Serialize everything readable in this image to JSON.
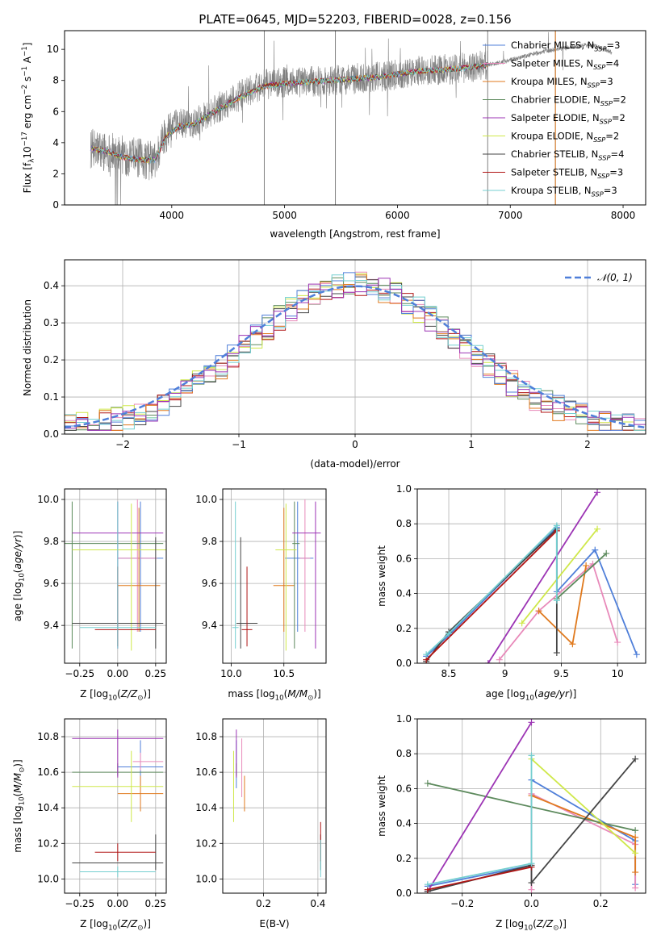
{
  "colors": {
    "Chabrier MILES": "#4f7fd9",
    "Salpeter MILES": "#e88aba",
    "Kroupa MILES": "#e07a1e",
    "Chabrier ELODIE": "#5d8a5d",
    "Salpeter ELODIE": "#9c34b4",
    "Kroupa ELODIE": "#cfe84a",
    "Chabrier STELIB": "#454545",
    "Salpeter STELIB": "#b01515",
    "Kroupa STELIB": "#74cfd0",
    "data": "#808080",
    "gauss": "#4f7fd9"
  },
  "chart_data": [
    {
      "type": "line",
      "title": "PLATE=0645, MJD=52203, FIBERID=0028, z=0.156",
      "xlabel": "wavelength [Angstrom, rest frame]",
      "ylabel": "Flux [f_λ10^-17 erg cm^-2 s^-1 A^-1]",
      "xlim": [
        3050,
        8200
      ],
      "ylim": [
        0,
        11.2
      ],
      "xticks": [
        4000,
        5000,
        6000,
        7000,
        8000
      ],
      "yticks": [
        0,
        2,
        4,
        6,
        8,
        10
      ],
      "legend_position": "right",
      "legend": [
        {
          "model": "Chabrier MILES",
          "n": "3"
        },
        {
          "model": "Salpeter MILES",
          "n": "4"
        },
        {
          "model": "Kroupa MILES",
          "n": "3"
        },
        {
          "model": "Chabrier ELODIE",
          "n": "2"
        },
        {
          "model": "Salpeter ELODIE",
          "n": "2"
        },
        {
          "model": "Kroupa ELODIE",
          "n": "2"
        },
        {
          "model": "Chabrier STELIB",
          "n": "4"
        },
        {
          "model": "Salpeter STELIB",
          "n": "3"
        },
        {
          "model": "Kroupa STELIB",
          "n": "3"
        }
      ],
      "spectrum_anchor": {
        "x": [
          3300,
          3450,
          3550,
          3700,
          3850,
          3950,
          4050,
          4200,
          4400,
          4600,
          4800,
          5000,
          5200,
          5400,
          5600,
          5800,
          6000,
          6200,
          6400,
          6600,
          6800,
          7000,
          7200,
          7400,
          7500,
          7700,
          7800,
          7900
        ],
        "y": [
          3.6,
          3.4,
          3.2,
          3.0,
          2.8,
          4.7,
          5.2,
          5.3,
          6.2,
          7.0,
          7.7,
          7.9,
          7.9,
          8.0,
          8.1,
          8.2,
          8.4,
          8.6,
          8.7,
          8.8,
          9.0,
          9.3,
          9.7,
          10.0,
          10.1,
          10.3,
          10.1,
          9.8
        ]
      },
      "model_anchor": {
        "x": [
          3300,
          3450,
          3550,
          3700,
          3850,
          3950,
          4050,
          4200,
          4400,
          4600,
          4800,
          5000,
          5200,
          5400,
          5600,
          5800,
          6000,
          6200,
          6400,
          6600,
          6800
        ],
        "y": [
          3.6,
          3.4,
          3.1,
          2.9,
          2.9,
          4.4,
          5.0,
          5.2,
          6.1,
          6.9,
          7.6,
          7.8,
          7.9,
          8.0,
          8.1,
          8.2,
          8.4,
          8.6,
          8.7,
          8.8,
          9.0
        ]
      }
    },
    {
      "type": "histogram",
      "xlabel": "(data-model)/error",
      "ylabel": "Normed distribution",
      "xlim": [
        -2.5,
        2.5
      ],
      "ylim": [
        0,
        0.47
      ],
      "xticks": [
        -2,
        -1,
        0,
        1,
        2
      ],
      "xticklabels": [
        "−2",
        "−1",
        "0",
        "1",
        "2"
      ],
      "yticks": [
        0.0,
        0.1,
        0.2,
        0.3,
        0.4
      ],
      "grid": true,
      "bin_width": 0.1,
      "legend_label": "𝒩(0, 1)",
      "legend_position": "top-right"
    },
    {
      "type": "errorbar",
      "xlabel": "Z [log10(Z/Z⊙)]",
      "ylabel": "age  [log10(age/yr)]",
      "xlim": [
        -0.35,
        0.32
      ],
      "ylim": [
        9.22,
        10.05
      ],
      "xticks": [
        -0.25,
        0.0,
        0.25
      ],
      "xticklabels": [
        "−0.25",
        "0.00",
        "0.25"
      ],
      "yticks": [
        9.4,
        9.6,
        9.8,
        10.0
      ],
      "grid": true,
      "points": [
        {
          "model": "Chabrier MILES",
          "x": 0.15,
          "xe": [
            0.15,
            0.15
          ],
          "y": 9.72,
          "ye": [
            0.35,
            0.27
          ]
        },
        {
          "model": "Salpeter MILES",
          "x": 0.13,
          "xe": [
            0.13,
            0.13
          ],
          "y": 9.72,
          "ye": [
            0.35,
            0.28
          ]
        },
        {
          "model": "Kroupa MILES",
          "x": 0.14,
          "xe": [
            0.14,
            0.14
          ],
          "y": 9.59,
          "ye": [
            0.22,
            0.37
          ]
        },
        {
          "model": "Chabrier ELODIE",
          "x": -0.3,
          "xe": [
            0.6,
            0.6
          ],
          "y": 9.79,
          "ye": [
            0.5,
            0.2
          ]
        },
        {
          "model": "Salpeter ELODIE",
          "x": 0.0,
          "xe": [
            0.3,
            0.3
          ],
          "y": 9.84,
          "ye": [
            0.55,
            0.15
          ]
        },
        {
          "model": "Kroupa ELODIE",
          "x": 0.09,
          "xe": [
            0.39,
            0.3
          ],
          "y": 9.76,
          "ye": [
            0.48,
            0.22
          ]
        },
        {
          "model": "Chabrier STELIB",
          "x": 0.25,
          "xe": [
            0.55,
            0.05
          ],
          "y": 9.41,
          "ye": [
            0.12,
            0.41
          ]
        },
        {
          "model": "Salpeter STELIB",
          "x": 0.0,
          "xe": [
            0.15,
            0.25
          ],
          "y": 9.38,
          "ye": [
            0.08,
            0.3
          ]
        },
        {
          "model": "Kroupa STELIB",
          "x": 0.0,
          "xe": [
            0.25,
            0.25
          ],
          "y": 9.39,
          "ye": [
            0.1,
            0.6
          ]
        }
      ]
    },
    {
      "type": "errorbar",
      "xlabel": "mass [log10(M/M⊙)]",
      "xlim": [
        9.92,
        10.9
      ],
      "ylim": [
        9.22,
        10.05
      ],
      "xticks": [
        10.0,
        10.5
      ],
      "xticklabels": [
        "10.0",
        "10.5"
      ],
      "yticks": [
        9.4,
        9.6,
        9.8,
        10.0
      ],
      "grid": true,
      "points": [
        {
          "model": "Chabrier MILES",
          "x": 10.63,
          "xe": [
            0.12,
            0.15
          ],
          "y": 9.72,
          "ye": [
            0.35,
            0.27
          ]
        },
        {
          "model": "Salpeter MILES",
          "x": 10.7,
          "xe": [
            0.05,
            0.05
          ],
          "y": 9.72,
          "ye": [
            0.35,
            0.28
          ]
        },
        {
          "model": "Kroupa MILES",
          "x": 10.5,
          "xe": [
            0.1,
            0.1
          ],
          "y": 9.59,
          "ye": [
            0.22,
            0.37
          ]
        },
        {
          "model": "Chabrier ELODIE",
          "x": 10.6,
          "xe": [
            0.02,
            0.05
          ],
          "y": 9.79,
          "ye": [
            0.5,
            0.2
          ]
        },
        {
          "model": "Salpeter ELODIE",
          "x": 10.8,
          "xe": [
            0.22,
            0.05
          ],
          "y": 9.84,
          "ye": [
            0.55,
            0.15
          ]
        },
        {
          "model": "Kroupa ELODIE",
          "x": 10.52,
          "xe": [
            0.1,
            0.1
          ],
          "y": 9.76,
          "ye": [
            0.48,
            0.22
          ]
        },
        {
          "model": "Chabrier STELIB",
          "x": 10.09,
          "xe": [
            0.04,
            0.16
          ],
          "y": 9.41,
          "ye": [
            0.12,
            0.41
          ]
        },
        {
          "model": "Salpeter STELIB",
          "x": 10.15,
          "xe": [
            0.05,
            0.05
          ],
          "y": 9.38,
          "ye": [
            0.08,
            0.3
          ]
        },
        {
          "model": "Kroupa STELIB",
          "x": 10.04,
          "xe": [
            0.03,
            0.03
          ],
          "y": 9.39,
          "ye": [
            0.1,
            0.6
          ]
        }
      ]
    },
    {
      "type": "line",
      "xlabel": "age  [log10(age/yr)]",
      "ylabel": "mass weight",
      "xlim": [
        8.22,
        10.25
      ],
      "ylim": [
        0,
        1
      ],
      "xticks": [
        8.5,
        9.0,
        9.5,
        10.0
      ],
      "yticks": [
        0.0,
        0.2,
        0.4,
        0.6,
        0.8,
        1.0
      ],
      "grid": true,
      "series": [
        {
          "model": "Chabrier MILES",
          "x": [
            8.3,
            8.5,
            9.46,
            9.46,
            9.8,
            10.17
          ],
          "y": [
            0.04,
            0.16,
            0.78,
            0.41,
            0.65,
            0.05
          ]
        },
        {
          "model": "Salpeter MILES",
          "x": [
            8.95,
            9.3,
            9.78,
            10.0
          ],
          "y": [
            0.02,
            0.3,
            0.57,
            0.12
          ]
        },
        {
          "model": "Kroupa MILES",
          "x": [
            9.3,
            9.6,
            9.72
          ],
          "y": [
            0.3,
            0.11,
            0.56
          ]
        },
        {
          "model": "Chabrier ELODIE",
          "x": [
            9.46,
            9.9
          ],
          "y": [
            0.37,
            0.63
          ]
        },
        {
          "model": "Salpeter ELODIE",
          "x": [
            8.85,
            9.82
          ],
          "y": [
            0.0,
            0.98
          ]
        },
        {
          "model": "Kroupa ELODIE",
          "x": [
            9.15,
            9.82
          ],
          "y": [
            0.23,
            0.77
          ]
        },
        {
          "model": "Chabrier STELIB",
          "x": [
            8.3,
            8.5,
            9.46,
            9.46
          ],
          "y": [
            0.01,
            0.18,
            0.77,
            0.06
          ]
        },
        {
          "model": "Salpeter STELIB",
          "x": [
            8.3,
            9.46
          ],
          "y": [
            0.02,
            0.76
          ]
        },
        {
          "model": "Kroupa STELIB",
          "x": [
            8.3,
            8.5,
            9.46,
            9.46
          ],
          "y": [
            0.05,
            0.17,
            0.79,
            0.36
          ]
        }
      ]
    },
    {
      "type": "errorbar",
      "xlabel": "Z [log10(Z/Z⊙)]",
      "ylabel": "mass [log10(M/M⊙)]",
      "xlim": [
        -0.35,
        0.32
      ],
      "ylim": [
        9.92,
        10.9
      ],
      "xticks": [
        -0.25,
        0.0,
        0.25
      ],
      "xticklabels": [
        "−0.25",
        "0.00",
        "0.25"
      ],
      "yticks": [
        10.0,
        10.2,
        10.4,
        10.6,
        10.8
      ],
      "grid": true,
      "points": [
        {
          "model": "Chabrier MILES",
          "x": 0.15,
          "xe": [
            0.15,
            0.15
          ],
          "y": 10.63,
          "ye": [
            0.12,
            0.15
          ]
        },
        {
          "model": "Salpeter MILES",
          "x": 0.15,
          "xe": [
            0.05,
            0.15
          ],
          "y": 10.66,
          "ye": [
            0.05,
            0.05
          ]
        },
        {
          "model": "Kroupa MILES",
          "x": 0.15,
          "xe": [
            0.15,
            0.15
          ],
          "y": 10.48,
          "ye": [
            0.1,
            0.1
          ]
        },
        {
          "model": "Chabrier ELODIE",
          "x": 0.0,
          "xe": [
            0.3,
            0.3
          ],
          "y": 10.6,
          "ye": [
            0.02,
            0.05
          ]
        },
        {
          "model": "Salpeter ELODIE",
          "x": 0.0,
          "xe": [
            0.3,
            0.3
          ],
          "y": 10.79,
          "ye": [
            0.22,
            0.05
          ]
        },
        {
          "model": "Kroupa ELODIE",
          "x": 0.09,
          "xe": [
            0.39,
            0.21
          ],
          "y": 10.52,
          "ye": [
            0.2,
            0.2
          ]
        },
        {
          "model": "Chabrier STELIB",
          "x": 0.25,
          "xe": [
            0.55,
            0.05
          ],
          "y": 10.09,
          "ye": [
            0.04,
            0.16
          ]
        },
        {
          "model": "Salpeter STELIB",
          "x": 0.0,
          "xe": [
            0.15,
            0.25
          ],
          "y": 10.15,
          "ye": [
            0.05,
            0.05
          ]
        },
        {
          "model": "Kroupa STELIB",
          "x": 0.0,
          "xe": [
            0.25,
            0.25
          ],
          "y": 10.04,
          "ye": [
            0.03,
            0.03
          ]
        }
      ]
    },
    {
      "type": "errorbar",
      "xlabel": "E(B-V)",
      "xlim": [
        0.05,
        0.43
      ],
      "ylim": [
        9.92,
        10.9
      ],
      "xticks": [
        0.2,
        0.4
      ],
      "xticklabels": [
        "0.2",
        "0.4"
      ],
      "yticks": [
        10.0,
        10.2,
        10.4,
        10.6,
        10.8
      ],
      "grid": true,
      "points": [
        {
          "model": "Chabrier MILES",
          "x": 0.1,
          "y": 10.63,
          "ye": [
            0.12,
            0.15
          ]
        },
        {
          "model": "Salpeter MILES",
          "x": 0.12,
          "y": 10.66,
          "ye": [
            0.2,
            0.13
          ]
        },
        {
          "model": "Kroupa MILES",
          "x": 0.13,
          "y": 10.48,
          "ye": [
            0.1,
            0.1
          ]
        },
        {
          "model": "Chabrier ELODIE",
          "x": 0.1,
          "y": 10.6,
          "ye": [
            0.02,
            0.05
          ]
        },
        {
          "model": "Salpeter ELODIE",
          "x": 0.1,
          "y": 10.79,
          "ye": [
            0.22,
            0.05
          ]
        },
        {
          "model": "Kroupa ELODIE",
          "x": 0.09,
          "y": 10.52,
          "ye": [
            0.2,
            0.2
          ]
        },
        {
          "model": "Chabrier STELIB",
          "x": 0.41,
          "y": 10.09,
          "ye": [
            0.04,
            0.16
          ]
        },
        {
          "model": "Salpeter STELIB",
          "x": 0.41,
          "y": 10.15,
          "ye": [
            0.05,
            0.17
          ]
        },
        {
          "model": "Kroupa STELIB",
          "x": 0.41,
          "y": 10.04,
          "ye": [
            0.03,
            0.18
          ]
        }
      ]
    },
    {
      "type": "line",
      "xlabel": "Z [log10(Z/Z⊙)]",
      "ylabel": "mass weight",
      "xlim": [
        -0.33,
        0.33
      ],
      "ylim": [
        0,
        1
      ],
      "xticks": [
        -0.2,
        0.0,
        0.2
      ],
      "xticklabels": [
        "−0.2",
        "0.0",
        "0.2"
      ],
      "yticks": [
        0.0,
        0.2,
        0.4,
        0.6,
        0.8,
        1.0
      ],
      "grid": true,
      "series": [
        {
          "model": "Chabrier MILES",
          "x": [
            -0.3,
            0.0,
            0.0,
            0.3,
            0.3
          ],
          "y": [
            0.04,
            0.16,
            0.65,
            0.3,
            0.05
          ]
        },
        {
          "model": "Salpeter MILES",
          "x": [
            0.0,
            0.0,
            0.3,
            0.3
          ],
          "y": [
            0.02,
            0.57,
            0.28,
            0.03
          ]
        },
        {
          "model": "Kroupa MILES",
          "x": [
            0.0,
            0.3,
            0.3
          ],
          "y": [
            0.56,
            0.32,
            0.12
          ]
        },
        {
          "model": "Chabrier ELODIE",
          "x": [
            -0.3,
            0.3
          ],
          "y": [
            0.63,
            0.36
          ]
        },
        {
          "model": "Salpeter ELODIE",
          "x": [
            -0.3,
            0.0
          ],
          "y": [
            0.01,
            0.98
          ]
        },
        {
          "model": "Kroupa ELODIE",
          "x": [
            0.0,
            0.3
          ],
          "y": [
            0.77,
            0.23
          ]
        },
        {
          "model": "Chabrier STELIB",
          "x": [
            -0.3,
            0.0,
            0.0,
            0.3
          ],
          "y": [
            0.01,
            0.16,
            0.06,
            0.77
          ]
        },
        {
          "model": "Salpeter STELIB",
          "x": [
            -0.3,
            0.0
          ],
          "y": [
            0.02,
            0.15
          ]
        },
        {
          "model": "Kroupa STELIB",
          "x": [
            -0.3,
            0.0,
            0.0
          ],
          "y": [
            0.05,
            0.17,
            0.79
          ]
        }
      ]
    }
  ]
}
